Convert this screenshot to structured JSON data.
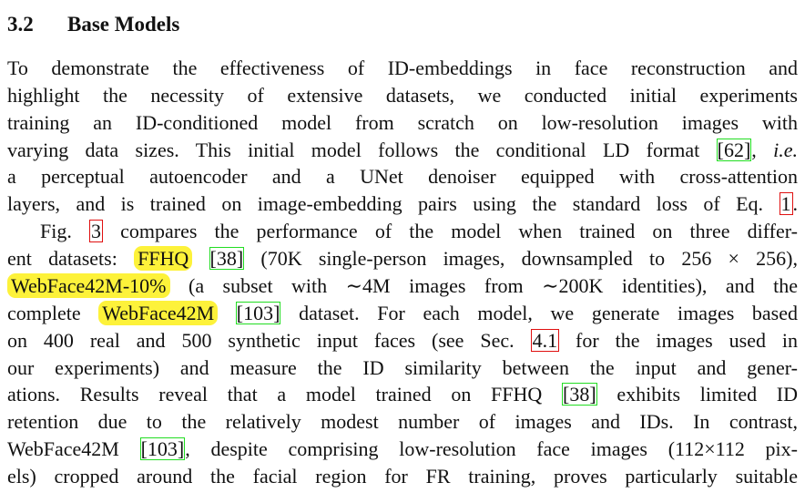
{
  "section": {
    "number": "3.2",
    "title": "Base Models"
  },
  "paragraphs": [
    {
      "lines": [
        [
          {
            "text": "To demonstrate the effectiveness of ID-embeddings in face reconstruction and"
          }
        ],
        [
          {
            "text": "highlight the necessity of extensive datasets, we conducted initial experiments"
          }
        ],
        [
          {
            "text": "training an ID-conditioned model from scratch on low-resolution images with"
          }
        ],
        [
          {
            "text": "varying data sizes. This initial model follows the conditional LD format "
          },
          {
            "cite": "[62]"
          },
          {
            "text": ", "
          },
          {
            "em": "i.e."
          }
        ],
        [
          {
            "text": "a perceptual autoencoder and a UNet denoiser equipped with cross-attention"
          }
        ],
        [
          {
            "text": "layers, and is trained on image-embedding pairs using the standard loss of Eq. "
          },
          {
            "ref": "1"
          },
          {
            "text": "."
          }
        ]
      ]
    },
    {
      "lines": [
        [
          {
            "text": "Fig. "
          },
          {
            "ref": "3"
          },
          {
            "text": " compares the performance of the model when trained on three differ-"
          }
        ],
        [
          {
            "text": "ent datasets: "
          },
          {
            "mark": "FFHQ"
          },
          {
            "text": " "
          },
          {
            "cite": "[38]"
          },
          {
            "text": " (70K single-person images, downsampled to 256 × 256),"
          }
        ],
        [
          {
            "mark": "WebFace42M-10%"
          },
          {
            "text": " (a subset with ∼4M images from ∼200K identities), and the"
          }
        ],
        [
          {
            "text": "complete "
          },
          {
            "mark": "WebFace42M"
          },
          {
            "text": " "
          },
          {
            "cite": "[103]"
          },
          {
            "text": " dataset. For each model, we generate images based"
          }
        ],
        [
          {
            "text": "on 400 real and 500 synthetic input faces (see Sec. "
          },
          {
            "ref": "4.1"
          },
          {
            "text": " for the images used in"
          }
        ],
        [
          {
            "text": "our experiments) and measure the ID similarity between the input and gener-"
          }
        ],
        [
          {
            "text": "ations. Results reveal that a model trained on FFHQ "
          },
          {
            "cite": "[38]"
          },
          {
            "text": " exhibits limited ID"
          }
        ],
        [
          {
            "text": "retention due to the relatively modest number of images and IDs. In contrast,"
          }
        ],
        [
          {
            "text": "WebFace42M "
          },
          {
            "cite": "[103]"
          },
          {
            "text": ", despite comprising low-resolution face images (112×112 pix-"
          }
        ],
        [
          {
            "text": "els) cropped around the facial region for FR training, proves particularly suitable"
          }
        ]
      ]
    }
  ]
}
